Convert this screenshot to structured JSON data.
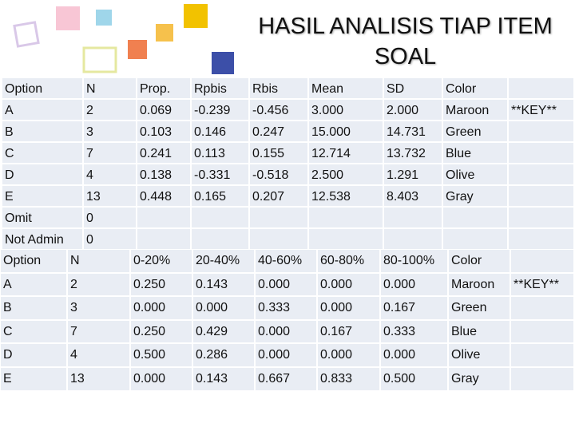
{
  "title": "HASIL ANALISIS TIAP ITEM SOAL",
  "table1": {
    "header": [
      "Option",
      "N",
      "Prop.",
      "Rpbis",
      "Rbis",
      "Mean",
      "SD",
      "Color"
    ],
    "rows": [
      [
        "A",
        "2",
        "0.069",
        "-0.239",
        "-0.456",
        "3.000",
        "2.000",
        "Maroon",
        "**KEY**"
      ],
      [
        "B",
        "3",
        "0.103",
        "0.146",
        "0.247",
        "15.000",
        "14.731",
        "Green"
      ],
      [
        "C",
        "7",
        "0.241",
        "0.113",
        "0.155",
        "12.714",
        "13.732",
        "Blue"
      ],
      [
        "D",
        "4",
        "0.138",
        "-0.331",
        "-0.518",
        "2.500",
        "1.291",
        "Olive"
      ],
      [
        "E",
        "13",
        "0.448",
        "0.165",
        "0.207",
        "12.538",
        "8.403",
        "Gray"
      ],
      [
        "Omit",
        "0"
      ],
      [
        "Not Admin",
        "0"
      ]
    ]
  },
  "table2": {
    "header": [
      "Option",
      "N",
      "0-20%",
      "20-40%",
      "40-60%",
      "60-80%",
      "80-100%",
      "Color"
    ],
    "rows": [
      [
        "A",
        "2",
        "0.250",
        "0.143",
        "0.000",
        "0.000",
        "0.000",
        "Maroon",
        "**KEY**"
      ],
      [
        "B",
        "3",
        "0.000",
        "0.000",
        "0.333",
        "0.000",
        "0.167",
        "Green"
      ],
      [
        "C",
        "7",
        "0.250",
        "0.429",
        "0.000",
        "0.167",
        "0.333",
        "Blue"
      ],
      [
        "D",
        "4",
        "0.500",
        "0.286",
        "0.000",
        "0.000",
        "0.000",
        "Olive"
      ],
      [
        "E",
        "13",
        "0.000",
        "0.143",
        "0.667",
        "0.833",
        "0.500",
        "Gray"
      ]
    ]
  }
}
